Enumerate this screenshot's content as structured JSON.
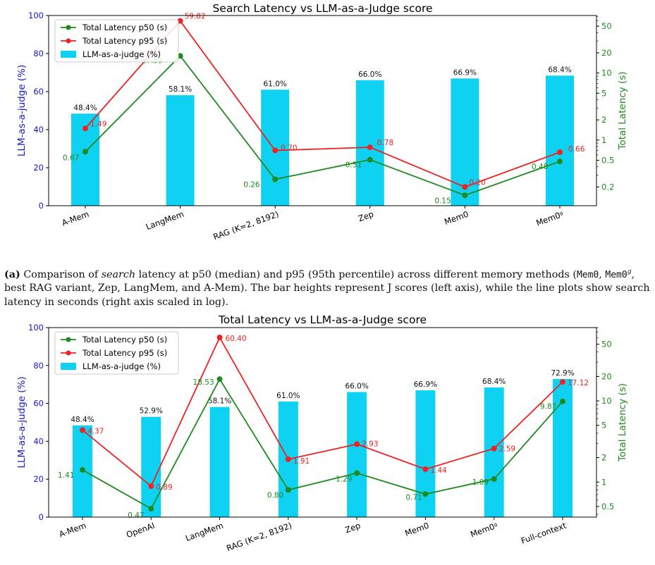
{
  "colors": {
    "bar": "#0fd2f2",
    "p50": "#1f8a1f",
    "p95": "#ee2222",
    "left_axis": "#1515d8",
    "right_axis": "#1f8a1f"
  },
  "caption": {
    "label": "(a)",
    "t1": "Comparison of",
    "t2": "search",
    "t3": "latency at p50 (median) and p95 (95th percentile) across different memory methods (",
    "m1": "Mem0",
    "t4": ", ",
    "m2": "Mem0",
    "sup": "g",
    "t5": ", best RAG variant, Zep, LangMem, and A-Mem). The bar heights represent J scores (left axis), while the line plots show search latency in seconds (right axis scaled in log)."
  },
  "chart_data": [
    {
      "type": "bar",
      "title": "Search Latency vs LLM-as-a-Judge score",
      "ylabel": "LLM-as-a-judge (%)",
      "y2label": "Total Latency (s)",
      "ylim": [
        0,
        100
      ],
      "y2lim": [
        0.105,
        72
      ],
      "y2scale": "log",
      "yticks": [
        "0",
        "20",
        "40",
        "60",
        "80",
        "100"
      ],
      "y2ticks": [
        "0.2",
        "0.5",
        "1",
        "2",
        "5",
        "10",
        "20",
        "50"
      ],
      "legend": [
        "Total Latency p50 (s)",
        "Total Latency p95 (s)",
        "LLM-as-a-judge (%)"
      ],
      "legend_position": "top-left",
      "categories": [
        "A-Mem",
        "LangMem",
        "RAG (K=2, 8192)",
        "Zep",
        "Mem0",
        "Mem0ᵍ"
      ],
      "bars": [
        48.4,
        58.1,
        61.0,
        66.0,
        66.9,
        68.4
      ],
      "bar_labels": [
        "48.4%",
        "58.1%",
        "61.0%",
        "66.0%",
        "66.9%",
        "68.4%"
      ],
      "p50": [
        0.67,
        17.99,
        0.26,
        0.51,
        0.15,
        0.48
      ],
      "p50_labels": [
        "0.67",
        "17.99",
        "0.26",
        "0.51",
        "0.15",
        "0.48"
      ],
      "p95": [
        1.49,
        59.82,
        0.7,
        0.78,
        0.2,
        0.66
      ],
      "p95_labels": [
        "1.49",
        "59.82",
        "0.70",
        "0.78",
        "0.20",
        "0.66"
      ]
    },
    {
      "type": "bar",
      "title": "Total Latency vs LLM-as-a-Judge score",
      "ylabel": "LLM-as-a-judge (%)",
      "y2label": "Total Latency (s)",
      "ylim": [
        0,
        100
      ],
      "y2lim": [
        0.37,
        80
      ],
      "y2scale": "log",
      "yticks": [
        "0",
        "20",
        "40",
        "60",
        "80",
        "100"
      ],
      "y2ticks": [
        "0.5",
        "1",
        "2",
        "5",
        "10",
        "20",
        "50"
      ],
      "legend": [
        "Total Latency p50 (s)",
        "Total Latency p95 (s)",
        "LLM-as-a-judge (%)"
      ],
      "legend_position": "top-left",
      "categories": [
        "A-Mem",
        "OpenAI",
        "LangMem",
        "RAG (K=2, 8192)",
        "Zep",
        "Mem0",
        "Mem0ᵍ",
        "Full-context"
      ],
      "bars": [
        48.4,
        52.9,
        58.1,
        61.0,
        66.0,
        66.9,
        68.4,
        72.9
      ],
      "bar_labels": [
        "48.4%",
        "52.9%",
        "58.1%",
        "61.0%",
        "66.0%",
        "66.9%",
        "68.4%",
        "72.9%"
      ],
      "p50": [
        1.41,
        0.47,
        18.53,
        0.8,
        1.29,
        0.71,
        1.09,
        9.87
      ],
      "p50_labels": [
        "1.41",
        "0.47",
        "18.53",
        "0.80",
        "1.29",
        "0.71",
        "1.09",
        "9.87"
      ],
      "p95": [
        4.37,
        0.89,
        60.4,
        1.91,
        2.93,
        1.44,
        2.59,
        17.12
      ],
      "p95_labels": [
        "4.37",
        "0.89",
        "60.40",
        "1.91",
        "2.93",
        "1.44",
        "2.59",
        "17.12"
      ]
    }
  ]
}
